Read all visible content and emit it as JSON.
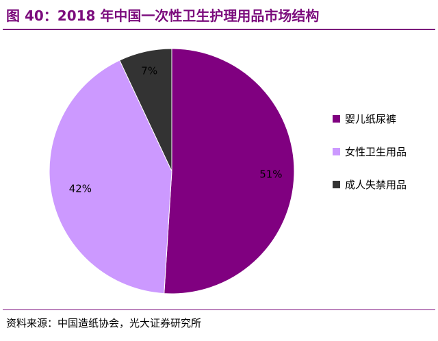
{
  "title": "图 40：2018 年中国一次性卫生护理用品市场结构",
  "source": "资料来源：中国造纸协会，光大证券研究所",
  "colors": {
    "accent": "#7b0b7c",
    "rule": "#7b0b7c"
  },
  "chart_data": {
    "type": "pie",
    "title": "",
    "start_angle_deg": 0,
    "direction": "clockwise",
    "legend_position": "right",
    "slices": [
      {
        "label": "婴儿纸尿裤",
        "value": 51,
        "display": "51%",
        "color": "#800080"
      },
      {
        "label": "女性卫生用品",
        "value": 42,
        "display": "42%",
        "color": "#cc99ff"
      },
      {
        "label": "成人失禁用品",
        "value": 7,
        "display": "7%",
        "color": "#333333"
      }
    ]
  }
}
